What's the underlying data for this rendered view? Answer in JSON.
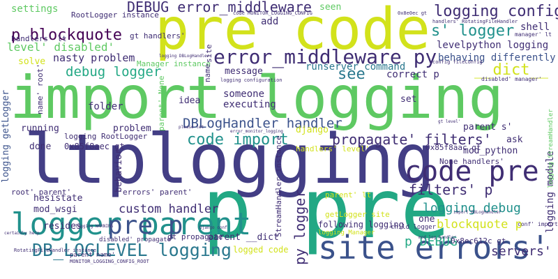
{
  "palette": {
    "purple": "#3f2d73",
    "indigo": "#433e85",
    "blue": "#3b528b",
    "teal": "#2a788e",
    "teal2": "#21918c",
    "green": "#22a884",
    "lime": "#5ec962",
    "yellow": "#d2e21b",
    "dark": "#440154"
  },
  "words": {
    "w01": "import logging",
    "w02": "ltplogging",
    "w03": "pre code",
    "w04": "p pre",
    "w05": "site errors'",
    "w06": "logger parent",
    "w07": "code pre",
    "w08": "error_middleware py",
    "w09": "pre p",
    "w10": "DB_LOGLEVEL logging",
    "w11": "DEBUG error_middleware",
    "w12": "logging config",
    "w13": "p blockquote",
    "w14": "level' disabled'",
    "w15": "s' logger",
    "w16": "debug logger",
    "w17": "nasty problem",
    "w18": "levelpython logging",
    "w19": "behaving differently",
    "w20": "runserver command",
    "w21": "message",
    "w22": "see",
    "w23": "correct p",
    "w24": "__dict__",
    "w25": "DBLogHandler handler",
    "w26": "code import",
    "w27": "propagate' filters'",
    "w28": "filters' p",
    "w29": "logging debug",
    "w30": "blockquote p",
    "w31": "custom handler",
    "w32": "p DEBUG",
    "w33": "servers'",
    "w34": "settings",
    "w35": "folder",
    "w36": "add",
    "w37": "seen",
    "w38": "shell",
    "w39": "solve",
    "w40": "someone",
    "w41": "executing",
    "w42": "idea",
    "w43": "running",
    "w44": "problem",
    "w45": "done",
    "w46": "0x85f8aec gt",
    "w47": "django",
    "w48": "parent s'",
    "w49": "ask",
    "w50": "mod_python",
    "w51": "set",
    "w52": "behavior",
    "w53": "errors' parent'",
    "w54": "hesistate",
    "w55": "mod_wsgi",
    "w56": "resides",
    "w57": "parent __dict",
    "w58": "logged code",
    "w59": "following logging",
    "w60": "0x8ec612c gt",
    "w61": "gt propagate",
    "w62": "getLogger site",
    "w63": "one",
    "w64": "None handlers'",
    "w65": "0x85f8aac gt",
    "w66": "logging RootLogger",
    "w67": "RootLogger instance",
    "w68": "handlers' lt",
    "w69": "gt handlers'",
    "w70": "Manager instance",
    "w71": "root' parent'",
    "w72": "logging getLogger",
    "w73": "py logger",
    "w74": "logging module",
    "w75": "name' root'",
    "w76": "parent' lt",
    "w77": "handlers' level'",
    "w78": "StreamHandler instance",
    "w79": "parent name'",
    "w80": "disabled' propagate'",
    "w81": "logging StreamHandler",
    "w82": "code MONITOR_LOGGING_CONFIG",
    "w83": "0x8e0ec gt",
    "w84": "handlers' RotatingFileHandler",
    "w85": "manager' lt",
    "w86": "config fileConfig",
    "w87": "logging DBLogHandler",
    "w88": "logging configuration",
    "w89": "disabled' manager'",
    "w90": "import DBLogHandler",
    "w91": "child logger",
    "w92": "logging Manager",
    "w93": "conf' import",
    "w94": "RotatingFileHandler instance",
    "w95": "MONITOR_LOGGING_CONFIG_ROOT",
    "w96": "name",
    "w97": "site",
    "w98": "parent' None",
    "w99": "gt level'",
    "w100": "error_monitor_logging",
    "w101": "mod_log handler",
    "w102": "logging WARNING",
    "w103": "Django conf",
    "w104": "certainly help",
    "w105": "please let"
  }
}
